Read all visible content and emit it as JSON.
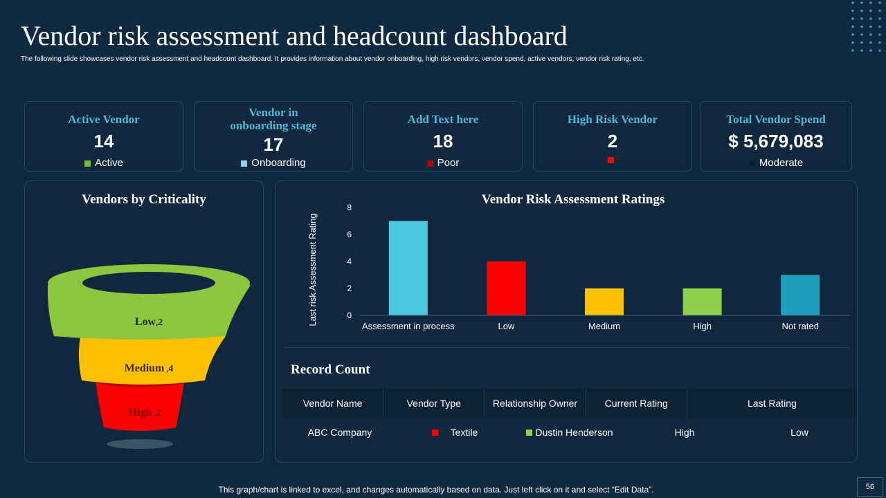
{
  "header": {
    "title": "Vendor risk assessment and headcount dashboard",
    "subtitle": "The following slide showcases vendor risk assessment and headcount dashboard. It provides information about vendor onboarding, high risk vendors, vendor spend, active vendors, vendor risk rating, etc."
  },
  "kpis": [
    {
      "label": "Active Vendor",
      "value": "14",
      "legend": "Active",
      "color": "#6fbf3b"
    },
    {
      "label": "Vendor in onboarding stage",
      "value": "17",
      "legend": "Onboarding",
      "color": "#8fd3ee"
    },
    {
      "label": "Add Text here",
      "value": "18",
      "legend": "Poor",
      "color": "#c00000"
    },
    {
      "label": "High Risk Vendor",
      "value": "2",
      "legend": "",
      "color": "#ee1111"
    },
    {
      "label": "Total Vendor Spend",
      "value": "$ 5,679,083",
      "legend": "Moderate",
      "color": "#0b1e2e"
    }
  ],
  "funnel": {
    "title": "Vendors by Criticality",
    "segments": [
      {
        "label": "Low",
        "value": 2,
        "color": "#8cc63f"
      },
      {
        "label": "Medium",
        "value": 4,
        "color": "#ffc000"
      },
      {
        "label": "High",
        "value": 2,
        "color": "#ff0000"
      }
    ]
  },
  "chart_data": {
    "type": "bar",
    "title": "Vendor Risk Assessment Ratings",
    "categories": [
      "Assessment in process",
      "Low",
      "Medium",
      "High",
      "Not rated"
    ],
    "values": [
      7,
      4,
      2,
      2,
      3
    ],
    "colors": [
      "#4dc6e0",
      "#ff0000",
      "#ffc000",
      "#8fd14f",
      "#1f9ebd"
    ],
    "xlabel": "",
    "ylabel": "Last risk Assessment Rating",
    "ylim": [
      0,
      8
    ],
    "yticks": [
      0,
      2,
      4,
      6,
      8
    ]
  },
  "records": {
    "title": "Record Count",
    "columns": [
      "Vendor Name",
      "Vendor Type",
      "Relationship Owner",
      "Current Rating",
      "Last Rating"
    ],
    "rows": [
      {
        "vendor_name": "ABC Company",
        "vendor_type": "Textile",
        "vendor_type_color": "#ff0000",
        "owner": "Dustin Henderson",
        "owner_color": "#8fd14f",
        "current_rating": "High",
        "last_rating": "Low"
      }
    ]
  },
  "footer": {
    "note": "This graph/chart is linked to excel, and changes automatically based on data. Just left click on it and select “Edit Data”.",
    "page": "56"
  }
}
